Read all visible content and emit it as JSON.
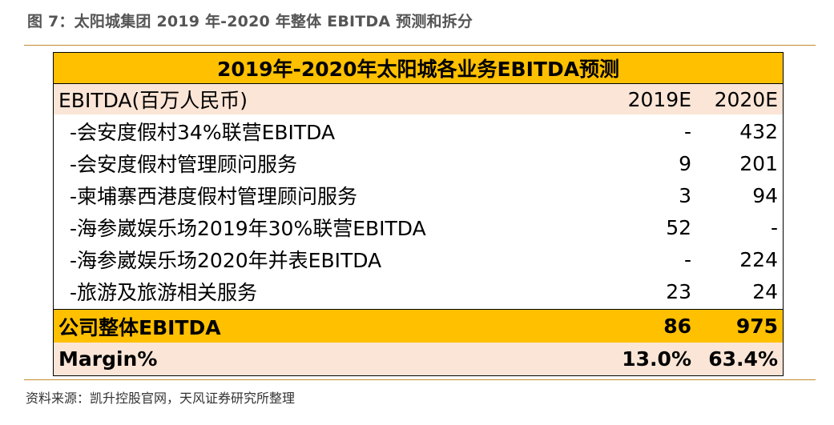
{
  "figure_title": "图 7：太阳城集团 2019 年-2020 年整体 EBITDA 预测和拆分",
  "table": {
    "title": "2019年-2020年太阳城各业务EBITDA预测",
    "header": {
      "label": "EBITDA(百万人民币)",
      "col1": "2019E",
      "col2": "2020E"
    },
    "rows": [
      {
        "label": "-会安度假村34%联营EBITDA",
        "v2019": "-",
        "v2020": "432"
      },
      {
        "label": "-会安度假村管理顾问服务",
        "v2019": "9",
        "v2020": "201"
      },
      {
        "label": "-柬埔寨西港度假村管理顾问服务",
        "v2019": "3",
        "v2020": "94"
      },
      {
        "label": "-海参崴娱乐场2019年30%联营EBITDA",
        "v2019": "52",
        "v2020": "-"
      },
      {
        "label": "-海参崴娱乐场2020年并表EBITDA",
        "v2019": "-",
        "v2020": "224"
      },
      {
        "label": "-旅游及旅游相关服务",
        "v2019": "23",
        "v2020": "24"
      }
    ],
    "total": {
      "label": "公司整体EBITDA",
      "v2019": "86",
      "v2020": "975"
    },
    "margin": {
      "label": "Margin%",
      "v2019": "13.0%",
      "v2020": "63.4%"
    }
  },
  "source": "资料来源：凯升控股官网，天风证券研究所整理",
  "colors": {
    "title_fill": "#ffc000",
    "header_fill": "#fbe5d6",
    "rule": "#c58a2f"
  }
}
